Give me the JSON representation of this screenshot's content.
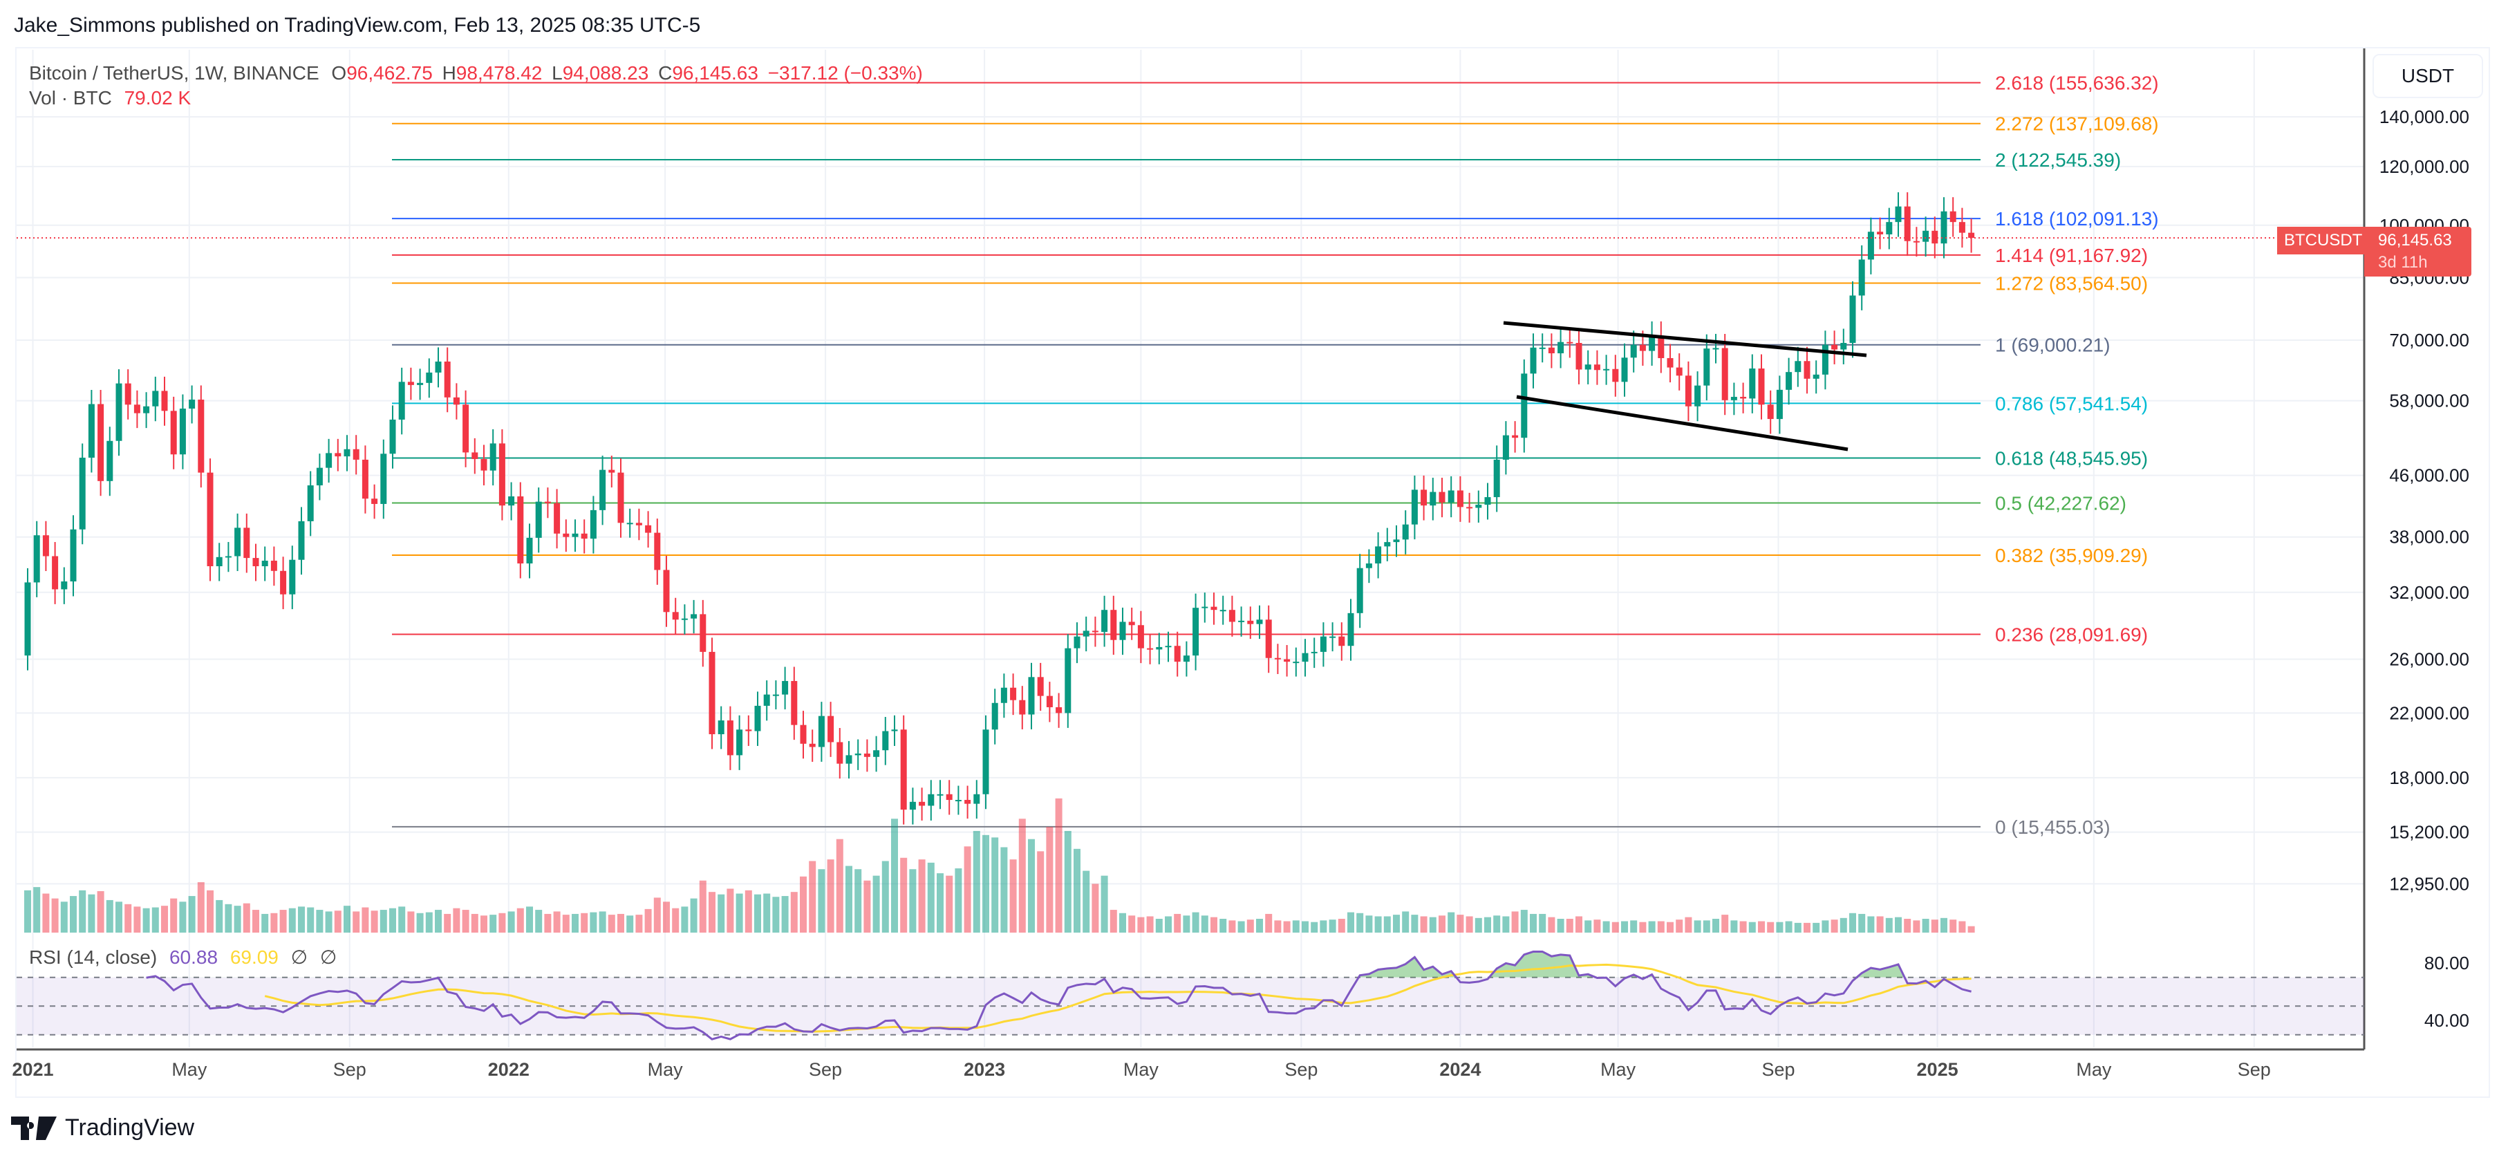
{
  "publisher": "Jake_Simmons published on TradingView.com, Feb 13, 2025 08:35 UTC-5",
  "legend": {
    "symbol": "Bitcoin / TetherUS, 1W, BINANCE",
    "o_label": "O",
    "o": "96,462.75",
    "h_label": "H",
    "h": "98,478.42",
    "l_label": "L",
    "l": "94,088.23",
    "c_label": "C",
    "c": "96,145.63",
    "change": "−317.12 (−0.33%)"
  },
  "volume_legend": {
    "label": "Vol · BTC",
    "value": "79.02 K"
  },
  "rsi_legend": {
    "label": "RSI (14, close)",
    "rsi": "60.88",
    "ma": "69.09",
    "s1": "∅",
    "s2": "∅"
  },
  "axis": {
    "currency": "USDT"
  },
  "price_tag": {
    "symbol": "BTCUSDT",
    "price": "96,145.63",
    "countdown": "3d 11h"
  },
  "logo": {
    "text": "TradingView"
  },
  "colors": {
    "up": "#089981",
    "down": "#f23645",
    "rsi": "#7e57c2",
    "rsi_ma": "#fdd835"
  },
  "chart_data": {
    "type": "candlestick",
    "interval": "1W",
    "y_scale": "log",
    "first_week": "2020-12-28",
    "y_ticks": [
      "140,000.00",
      "120,000.00",
      "100,000.00",
      "85,000.00",
      "70,000.00",
      "58,000.00",
      "46,000.00",
      "38,000.00",
      "32,000.00",
      "26,000.00",
      "22,000.00",
      "18,000.00",
      "15,200.00",
      "12,950.00"
    ],
    "y_tick_values": [
      140000,
      120000,
      100000,
      85000,
      70000,
      58000,
      46000,
      38000,
      32000,
      26000,
      22000,
      18000,
      15200,
      12950
    ],
    "x_ticks": [
      {
        "label": "2021",
        "date": "2021-01-01"
      },
      {
        "label": "May",
        "date": "2021-05-01"
      },
      {
        "label": "Sep",
        "date": "2021-09-01"
      },
      {
        "label": "2022",
        "date": "2022-01-01"
      },
      {
        "label": "May",
        "date": "2022-05-01"
      },
      {
        "label": "Sep",
        "date": "2022-09-01"
      },
      {
        "label": "2023",
        "date": "2023-01-01"
      },
      {
        "label": "May",
        "date": "2023-05-01"
      },
      {
        "label": "Sep",
        "date": "2023-09-01"
      },
      {
        "label": "2024",
        "date": "2024-01-01"
      },
      {
        "label": "May",
        "date": "2024-05-01"
      },
      {
        "label": "Sep",
        "date": "2024-09-01"
      },
      {
        "label": "2025",
        "date": "2025-01-01"
      },
      {
        "label": "May",
        "date": "2025-05-01"
      },
      {
        "label": "Sep",
        "date": "2025-09-01"
      }
    ],
    "open_first": 26300,
    "closes": [
      33000,
      38200,
      35800,
      32300,
      33100,
      38900,
      48600,
      57400,
      45200,
      51200,
      61200,
      57300,
      55800,
      57000,
      59800,
      56200,
      49100,
      56600,
      58200,
      46400,
      34700,
      35700,
      35800,
      39100,
      35600,
      34700,
      35300,
      34200,
      31800,
      35400,
      39900,
      44600,
      47100,
      49300,
      48800,
      49900,
      48300,
      42800,
      42100,
      49200,
      54700,
      61500,
      60900,
      61300,
      63300,
      65500,
      58600,
      57300,
      49400,
      48400,
      46700,
      50800,
      41900,
      43100,
      35000,
      37900,
      42400,
      42200,
      38400,
      38000,
      38400,
      37800,
      41300,
      46800,
      46400,
      39700,
      39700,
      39400,
      38500,
      34300,
      30100,
      29400,
      29500,
      29900,
      26600,
      20600,
      21500,
      19300,
      20900,
      20800,
      22500,
      23300,
      23300,
      24300,
      21200,
      20000,
      19800,
      21800,
      20100,
      18800,
      19300,
      19400,
      19200,
      19600,
      20800,
      20900,
      16300,
      16700,
      16500,
      17100,
      17100,
      16800,
      16800,
      16600,
      17100,
      20900,
      22700,
      23800,
      22900,
      21900,
      24600,
      23200,
      22400,
      22000,
      26900,
      27900,
      28400,
      28300,
      30300,
      27600,
      29200,
      28900,
      26900,
      26800,
      27000,
      27100,
      25800,
      26300,
      30500,
      30600,
      30300,
      30300,
      29200,
      29300,
      29000,
      29400,
      26100,
      26000,
      25800,
      25800,
      26500,
      26600,
      27900,
      27900,
      27100,
      30000,
      34500,
      35000,
      36900,
      37400,
      37700,
      39500,
      44000,
      41900,
      43700,
      42300,
      43900,
      41700,
      41600,
      42000,
      43000,
      48300,
      52100,
      51700,
      63100,
      68400,
      68400,
      67200,
      69600,
      69400,
      63900,
      64900,
      63800,
      64000,
      61500,
      66300,
      69000,
      67700,
      71000,
      66200,
      64300,
      62700,
      57000,
      60800,
      68200,
      68300,
      58100,
      58700,
      58400,
      64100,
      57300,
      54800,
      60000,
      63400,
      65600,
      62100,
      62900,
      69000,
      68000,
      69400,
      80400,
      89900,
      98000,
      97200,
      101000,
      106000,
      95200,
      95000,
      98300,
      94500,
      104400,
      101000,
      97700,
      96145.63
    ],
    "volumes_k": [
      520,
      560,
      480,
      420,
      380,
      450,
      520,
      470,
      510,
      400,
      380,
      350,
      320,
      300,
      310,
      330,
      420,
      380,
      450,
      620,
      520,
      400,
      350,
      330,
      360,
      280,
      230,
      240,
      280,
      300,
      320,
      310,
      280,
      260,
      270,
      330,
      260,
      310,
      270,
      280,
      300,
      320,
      260,
      240,
      250,
      280,
      230,
      300,
      280,
      230,
      210,
      220,
      240,
      260,
      300,
      320,
      280,
      230,
      260,
      220,
      230,
      240,
      250,
      260,
      220,
      230,
      210,
      220,
      290,
      430,
      380,
      300,
      320,
      420,
      640,
      500,
      470,
      540,
      480,
      520,
      470,
      480,
      440,
      450,
      500,
      690,
      880,
      780,
      900,
      1150,
      820,
      780,
      640,
      700,
      880,
      1400,
      920,
      780,
      900,
      860,
      730,
      700,
      790,
      1060,
      1250,
      1200,
      1170,
      1050,
      900,
      1400,
      1150,
      1000,
      1300,
      1650,
      1250,
      1030,
      760,
      600,
      700,
      280,
      240,
      210,
      190,
      200,
      170,
      200,
      230,
      210,
      250,
      210,
      190,
      170,
      150,
      140,
      160,
      170,
      230,
      150,
      140,
      150,
      140,
      130,
      150,
      160,
      170,
      250,
      240,
      210,
      200,
      200,
      220,
      260,
      220,
      200,
      190,
      210,
      250,
      220,
      200,
      180,
      190,
      210,
      200,
      260,
      280,
      230,
      230,
      190,
      170,
      170,
      200,
      150,
      160,
      140,
      130,
      140,
      150,
      130,
      140,
      140,
      130,
      160,
      190,
      150,
      150,
      170,
      220,
      150,
      140,
      130,
      140,
      130,
      130,
      140,
      120,
      120,
      120,
      150,
      160,
      180,
      240,
      230,
      200,
      200,
      180,
      190,
      170,
      150,
      170,
      160,
      180,
      160,
      140,
      79.02
    ],
    "fib_levels": [
      {
        "label": "2.618 (155,636.32)",
        "price": 155636.32,
        "color": "#f23645"
      },
      {
        "label": "2.272 (137,109.68)",
        "price": 137109.68,
        "color": "#ff9800"
      },
      {
        "label": "2 (122,545.39)",
        "price": 122545.39,
        "color": "#089981"
      },
      {
        "label": "1.618 (102,091.13)",
        "price": 102091.13,
        "color": "#2962ff"
      },
      {
        "label": "1.414 (91,167.92)",
        "price": 91167.92,
        "color": "#f23645"
      },
      {
        "label": "1.272 (83,564.50)",
        "price": 83564.5,
        "color": "#ff9800"
      },
      {
        "label": "1 (69,000.21)",
        "price": 69000.21,
        "color": "#5d6b8a"
      },
      {
        "label": "0.786 (57,541.54)",
        "price": 57541.54,
        "color": "#00bcd4"
      },
      {
        "label": "0.618 (48,545.95)",
        "price": 48545.95,
        "color": "#089981"
      },
      {
        "label": "0.5 (42,227.62)",
        "price": 42227.62,
        "color": "#4caf50"
      },
      {
        "label": "0.382 (35,909.29)",
        "price": 35909.29,
        "color": "#ff9800"
      },
      {
        "label": "0.236 (28,091.69)",
        "price": 28091.69,
        "color": "#f23645"
      },
      {
        "label": "0 (15,455.03)",
        "price": 15455.03,
        "color": "#787b86"
      }
    ],
    "rsi": {
      "length": 14,
      "ma_length": 14,
      "levels": [
        70,
        50,
        30
      ],
      "y_ticks": [
        "80.00",
        "40.00"
      ],
      "y_tick_values": [
        80,
        40
      ]
    }
  }
}
